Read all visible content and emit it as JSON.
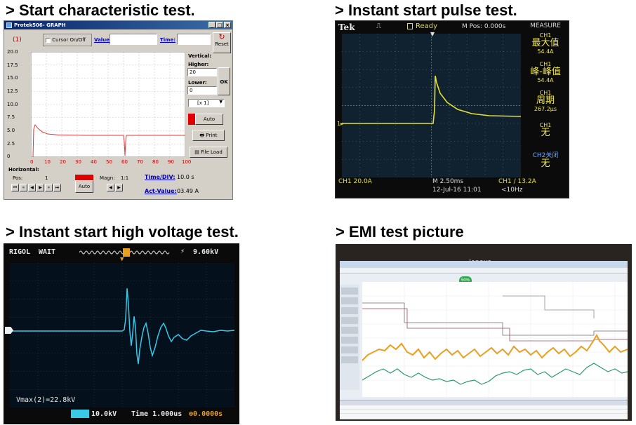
{
  "headings": {
    "start_characteristic": "> Start characteristic test.",
    "instant_pulse": "> Instant start pulse test.",
    "instant_hv": "> Instant start high voltage test.",
    "emi": "> EMI test picture"
  },
  "proteck": {
    "title": "Protek506- GRAPH",
    "channel_label": "(1)",
    "cursor_label": "Cursor On/Off",
    "value_label": "Value:",
    "time_label": "Time:",
    "reset_label": "Reset",
    "vertical_label": "Vertical:",
    "higher_label": "Higher:",
    "higher_value": "20",
    "lower_label": "Lower:",
    "lower_value": "0",
    "ok_label": "OK",
    "scale_select": "[x 1]",
    "auto_label": "Auto",
    "print_label": "Print",
    "file_load_label": "File Load",
    "horizontal_label": "Horizontal:",
    "pos_label": "Pos:",
    "pos_value": "1",
    "auto2_label": "Auto",
    "magn_label": "Magn:",
    "magn_value": "1:1",
    "time_div_label": "Time/DIV:",
    "time_div_value": "10.0 s",
    "act_value_label": "Act-Value:",
    "act_value": "03.49 A",
    "y_ticks": [
      "20.0",
      "17.5",
      "15.0",
      "12.5",
      "10.0",
      "7.5",
      "5.0",
      "2.5",
      "0"
    ],
    "x_ticks": [
      "0",
      "10",
      "20",
      "30",
      "40",
      "50",
      "60",
      "70",
      "80",
      "90",
      "100"
    ],
    "colors": {
      "trace": "#e03a3a",
      "auto_indicator": "#e00000"
    }
  },
  "tek": {
    "brand": "Tek",
    "status": "Ready",
    "m_pos": "M Pos: 0.000s",
    "measure_title": "MEASURE",
    "measurements": [
      {
        "ch": "CH1",
        "name": "最大值",
        "value": "54.4A"
      },
      {
        "ch": "CH1",
        "name": "峰-峰值",
        "value": "54.4A"
      },
      {
        "ch": "CH1",
        "name": "周期",
        "value": "267.2µs"
      },
      {
        "ch": "CH1",
        "name": "无",
        "value": ""
      },
      {
        "ch": "CH2关闭",
        "name": "无",
        "value": ""
      }
    ],
    "ch1_scale": "CH1  20.0A",
    "timebase": "M 2.50ms",
    "date": "12-Jul-16 11:01",
    "trigger": "CH1 ∕ 13.2A",
    "freq": "<10Hz",
    "trace_color": "#e8e030"
  },
  "rigol": {
    "brand": "RIGOL",
    "status": "WAIT",
    "trigger_level": "9.60kV",
    "vmax": "Vmax(2)=22.8kV",
    "ch_scale": "10.0kV",
    "time": "Time 1.000us",
    "offset": "0.0000s",
    "trace_color": "#38c8e8"
  },
  "emi": {
    "brand": "lenovo",
    "progress": "50%",
    "trace_colors": {
      "upper": "#e8a020",
      "lower": "#2a9a6a",
      "limit": "#8a8a9a"
    }
  }
}
